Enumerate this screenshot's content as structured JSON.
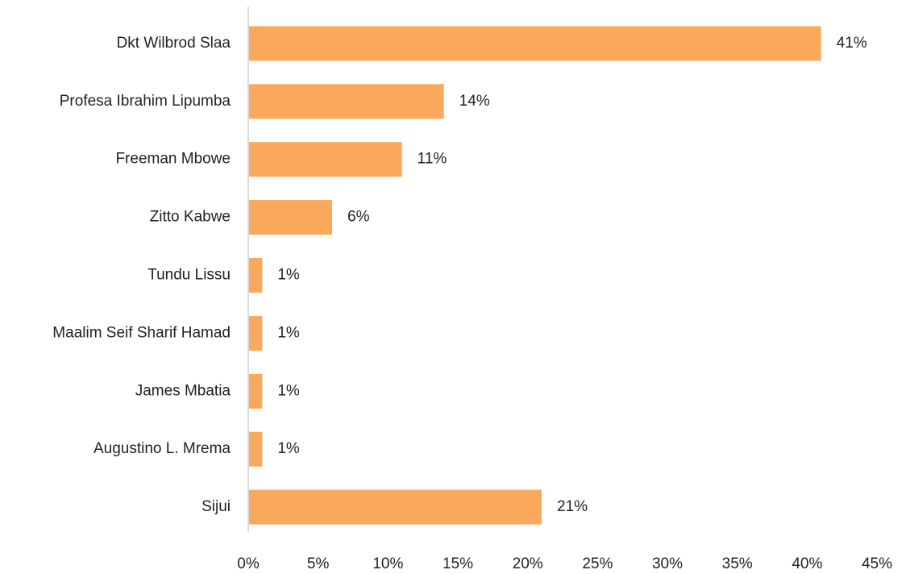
{
  "chart_data": {
    "type": "bar",
    "orientation": "horizontal",
    "categories": [
      "Dkt Wilbrod Slaa",
      "Profesa Ibrahim Lipumba",
      "Freeman Mbowe",
      "Zitto Kabwe",
      "Tundu Lissu",
      "Maalim Seif Sharif Hamad",
      "James Mbatia",
      "Augustino L. Mrema",
      "Sijui"
    ],
    "values": [
      41,
      14,
      11,
      6,
      1,
      1,
      1,
      1,
      21
    ],
    "value_labels": [
      "41%",
      "14%",
      "11%",
      "6%",
      "1%",
      "1%",
      "1%",
      "1%",
      "21%"
    ],
    "color": "#f9a85c",
    "xlim": [
      0,
      45
    ],
    "xticks": [
      {
        "value": 0,
        "label": "0%"
      },
      {
        "value": 5,
        "label": "5%"
      },
      {
        "value": 10,
        "label": "10%"
      },
      {
        "value": 15,
        "label": "15%"
      },
      {
        "value": 20,
        "label": "20%"
      },
      {
        "value": 25,
        "label": "25%"
      },
      {
        "value": 30,
        "label": "30%"
      },
      {
        "value": 35,
        "label": "35%"
      },
      {
        "value": 40,
        "label": "40%"
      },
      {
        "value": 45,
        "label": "45%"
      }
    ],
    "grid": false
  }
}
